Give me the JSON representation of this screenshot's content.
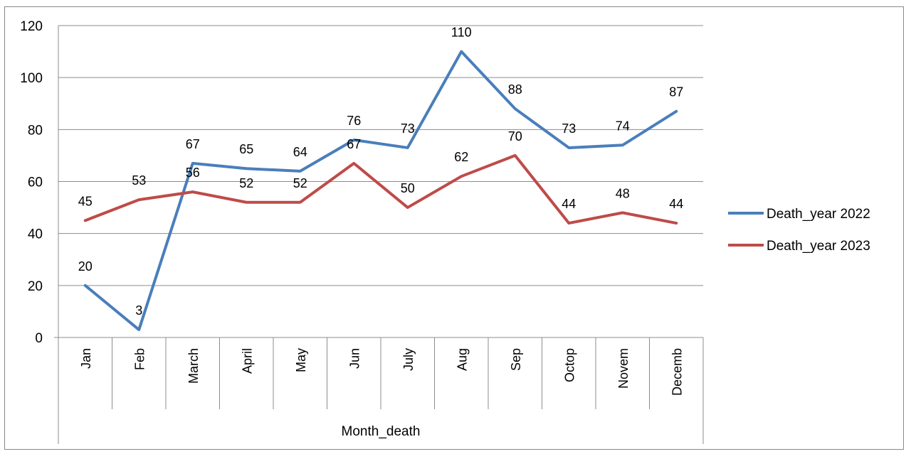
{
  "chart_data": {
    "type": "line",
    "categories": [
      "Jan",
      "Feb",
      "March",
      "April",
      "May",
      "Jun",
      "July",
      "Aug",
      "Sep",
      "Octop",
      "Novem",
      "Decemb"
    ],
    "series": [
      {
        "name": "Death_year 2022",
        "color": "#4a7ebb",
        "values": [
          20,
          3,
          67,
          65,
          64,
          76,
          73,
          110,
          88,
          73,
          74,
          87
        ]
      },
      {
        "name": "Death_year 2023",
        "color": "#be4b48",
        "values": [
          45,
          53,
          56,
          52,
          52,
          67,
          50,
          62,
          70,
          44,
          48,
          44
        ]
      }
    ],
    "title": "",
    "xlabel": "Month_death",
    "ylabel": "",
    "ylim": [
      0,
      120
    ],
    "yticks": [
      0,
      20,
      40,
      60,
      80,
      100,
      120
    ],
    "grid": true,
    "legend_position": "right",
    "data_labels": true
  }
}
